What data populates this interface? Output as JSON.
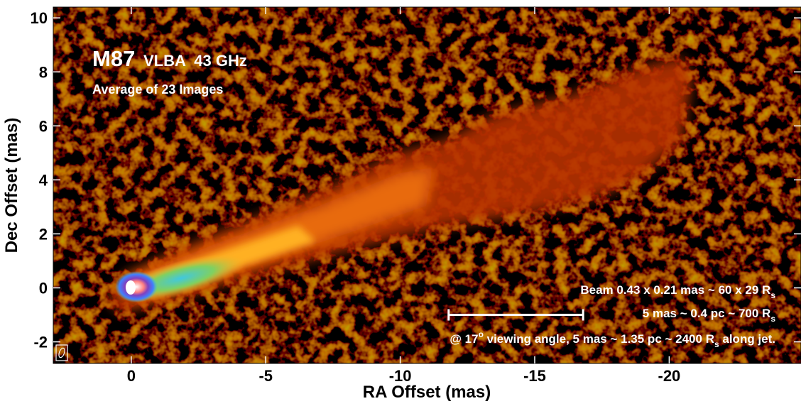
{
  "chart_data": {
    "type": "image",
    "title": "M87",
    "subtitle": "VLBA  43 GHz",
    "caption": "Average of 23 Images",
    "x_label": "RA Offset (mas)",
    "y_label": "Dec Offset (mas)",
    "xlim": [
      2.9,
      -24.9
    ],
    "ylim": [
      -2.8,
      10.4
    ],
    "xticks": [
      0,
      -5,
      -10,
      -15,
      -20
    ],
    "yticks": [
      -2,
      0,
      2,
      4,
      6,
      8,
      10
    ],
    "scale_bar": {
      "x": [
        -11.8,
        -16.8
      ],
      "y": -1.0
    },
    "annotations": [
      [
        {
          "text": "Beam 0.43 x 0.21 mas ~ 60 x 29 R"
        },
        {
          "text": "s",
          "script": "sub"
        }
      ],
      [
        {
          "text": "5 mas ~ 0.4 pc ~ 700 R"
        },
        {
          "text": "s",
          "script": "sub"
        }
      ],
      [
        {
          "text": "@ 17"
        },
        {
          "text": "o",
          "script": "sup"
        },
        {
          "text": " viewing angle, 5 mas ~ 1.35 pc ~ 2400 R"
        },
        {
          "text": "s",
          "script": "sub"
        },
        {
          "text": " along jet."
        }
      ]
    ]
  }
}
